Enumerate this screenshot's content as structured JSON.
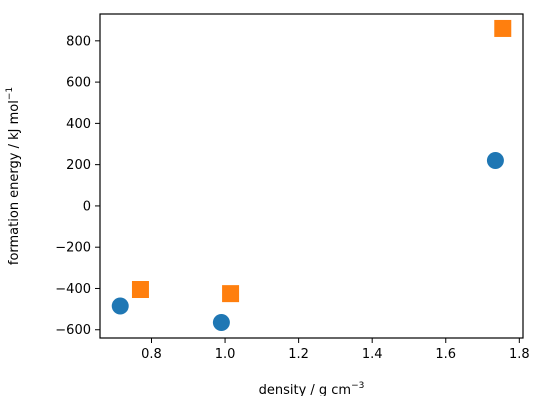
{
  "chart_data": {
    "type": "scatter",
    "title": "",
    "xlabel": {
      "text": "density / g cm",
      "sup": "−3"
    },
    "ylabel": {
      "text": "formation energy / kJ mol",
      "sup": "−1"
    },
    "xlim": [
      0.66,
      1.81
    ],
    "ylim": [
      -640,
      930
    ],
    "x_ticks": [
      0.8,
      1.0,
      1.2,
      1.4,
      1.6,
      1.8
    ],
    "x_tick_labels": [
      "0.8",
      "1.0",
      "1.2",
      "1.4",
      "1.6",
      "1.8"
    ],
    "y_ticks": [
      -600,
      -400,
      -200,
      0,
      200,
      400,
      600,
      800
    ],
    "y_tick_labels": [
      "−600",
      "−400",
      "−200",
      "0",
      "200",
      "400",
      "600",
      "800"
    ],
    "grid": false,
    "legend": "none",
    "series": [
      {
        "marker": "circle",
        "color": "#1f77b4",
        "points": [
          {
            "x": 0.715,
            "y": -485
          },
          {
            "x": 0.99,
            "y": -565
          },
          {
            "x": 1.735,
            "y": 220
          }
        ]
      },
      {
        "marker": "square",
        "color": "#ff7f0e",
        "points": [
          {
            "x": 0.77,
            "y": -405
          },
          {
            "x": 1.015,
            "y": -425
          },
          {
            "x": 1.755,
            "y": 860
          }
        ]
      }
    ]
  }
}
